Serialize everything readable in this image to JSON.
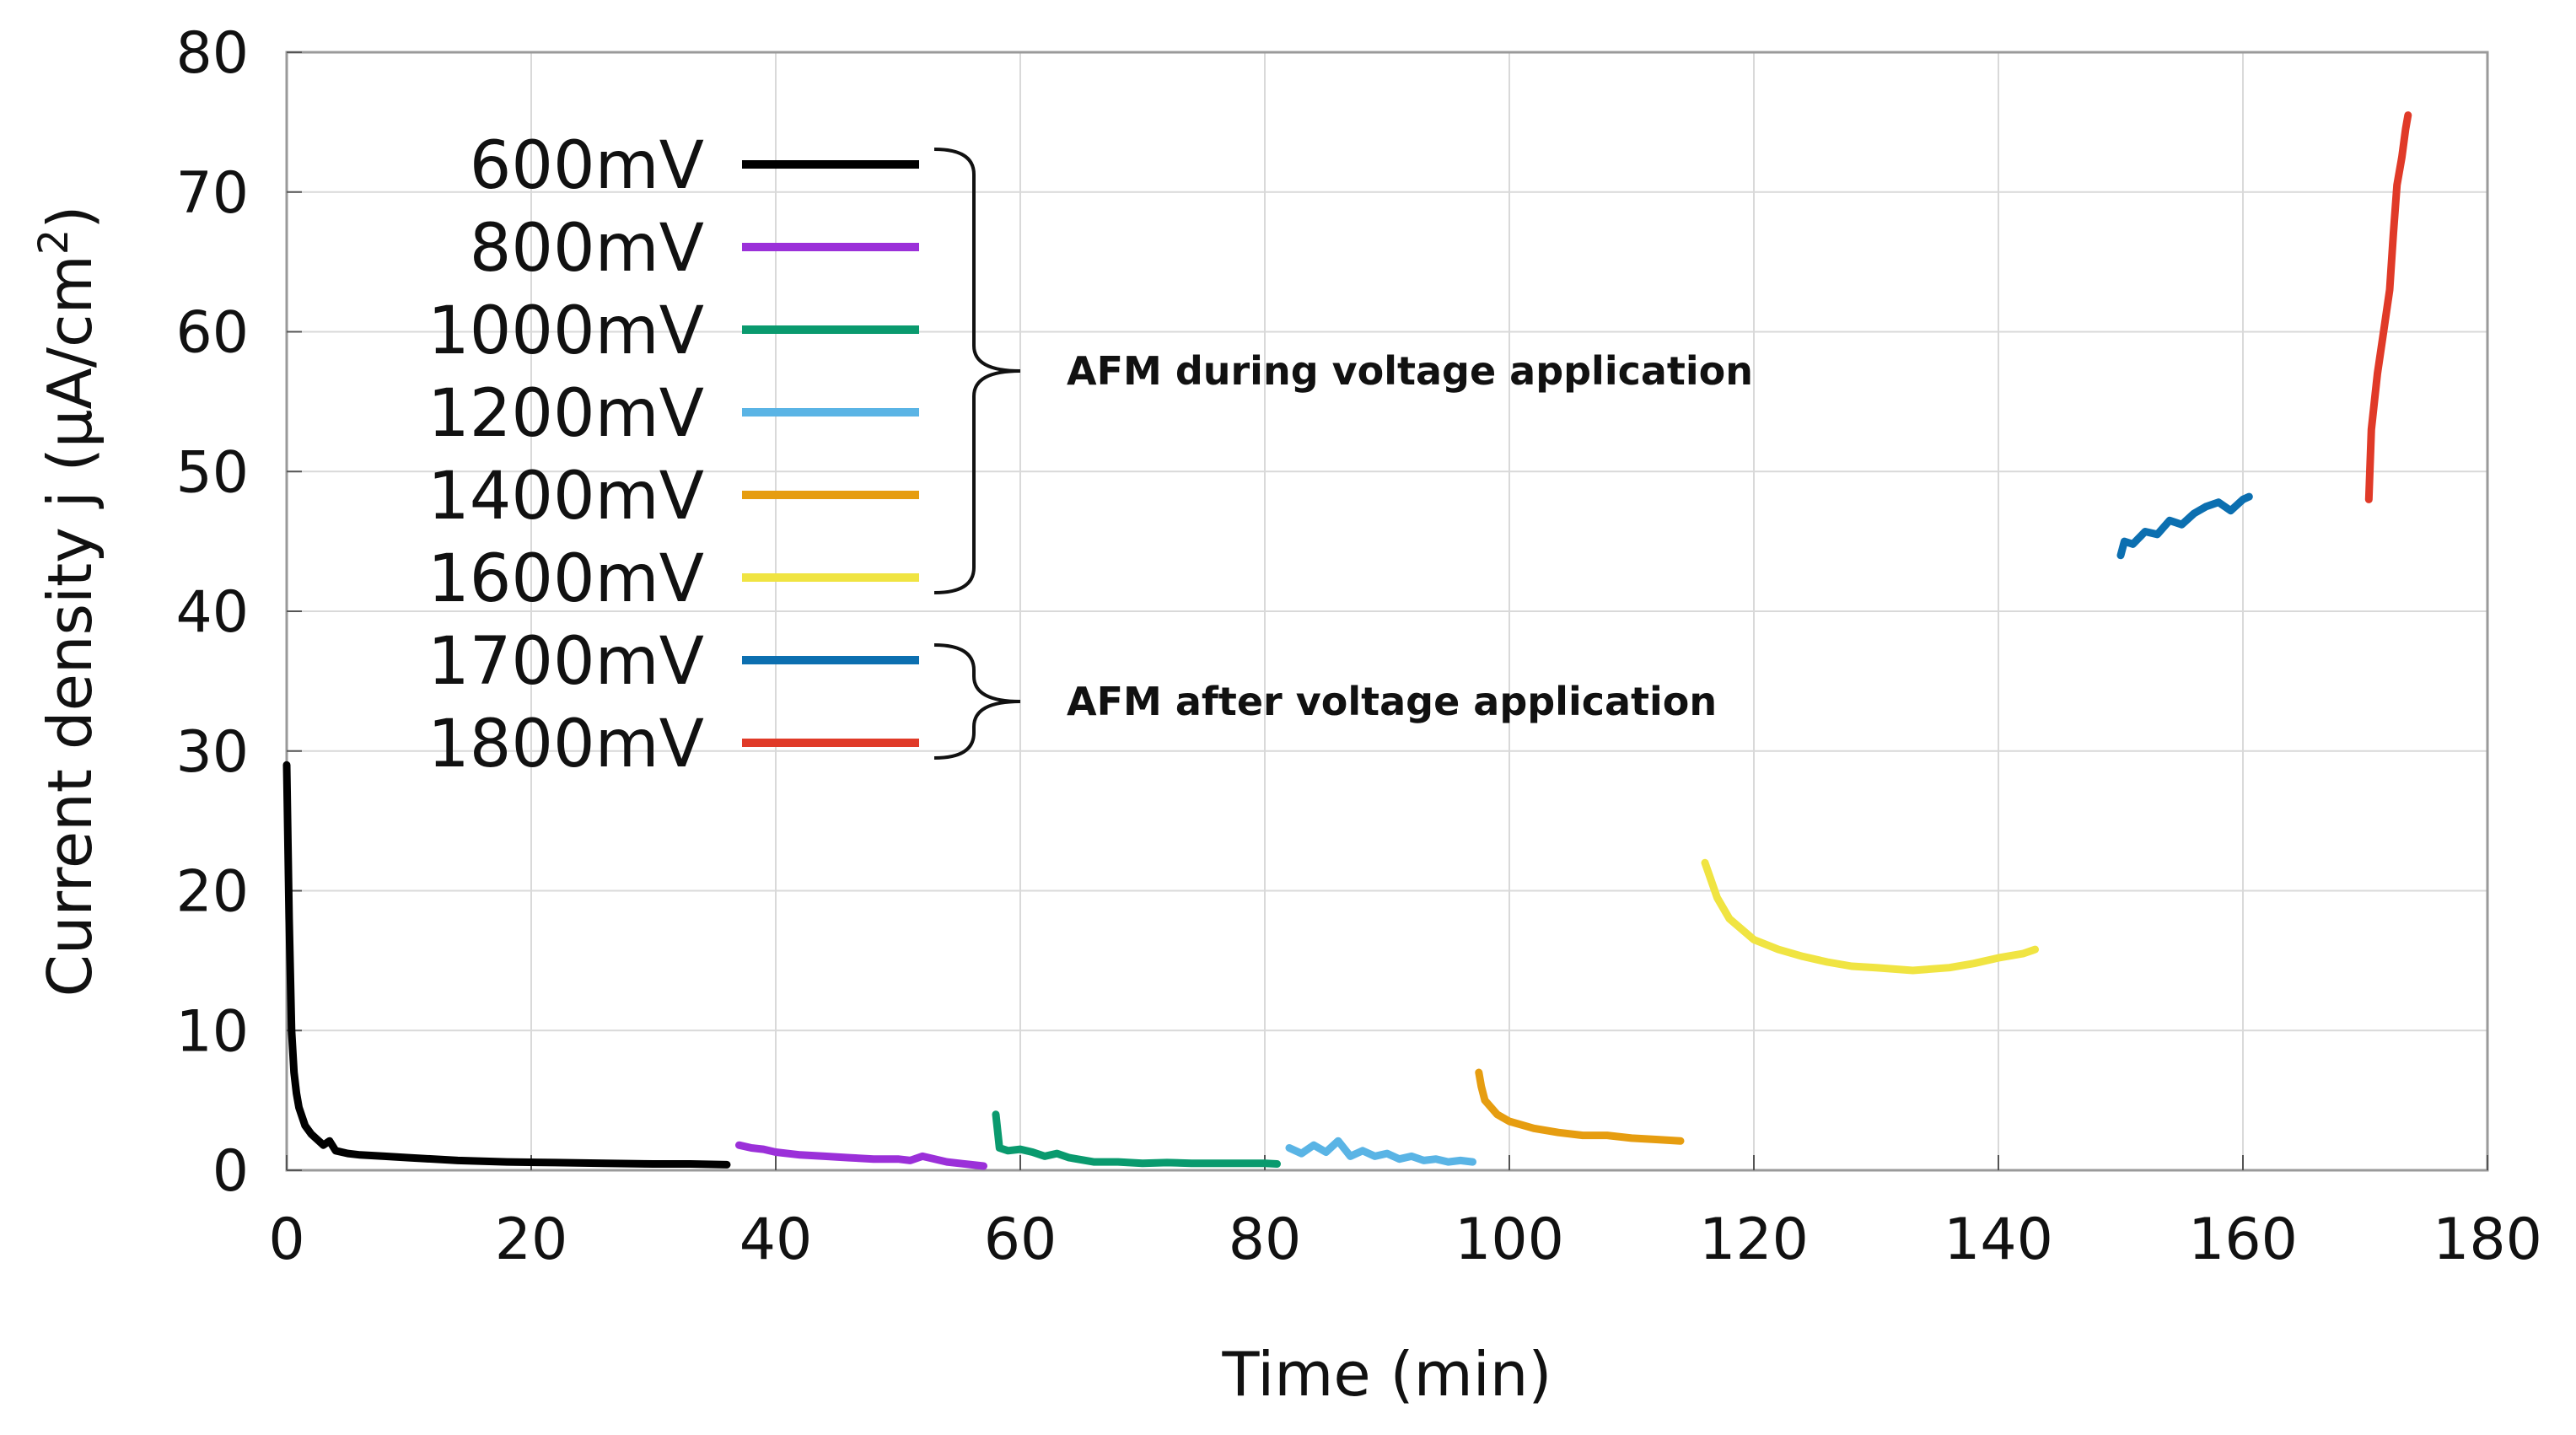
{
  "chart_data": {
    "type": "line",
    "title": "",
    "xlabel": "Time (min)",
    "ylabel": "Current density j (μA/cm²)",
    "ylabel_main": "Current density j (μA/cm",
    "ylabel_sup": "2",
    "ylabel_end": ")",
    "xlim": [
      0,
      180
    ],
    "ylim": [
      0,
      80
    ],
    "x_ticks": [
      0,
      20,
      40,
      60,
      80,
      100,
      120,
      140,
      160,
      180
    ],
    "y_ticks": [
      0,
      10,
      20,
      30,
      40,
      50,
      60,
      70,
      80
    ],
    "x_tick_labels": [
      "0",
      "20",
      "40",
      "60",
      "80",
      "100",
      "120",
      "140",
      "160",
      "180"
    ],
    "y_tick_labels": [
      "0",
      "10",
      "20",
      "30",
      "40",
      "50",
      "60",
      "70",
      "80"
    ],
    "grid": true,
    "legend_position": "top-left",
    "series": [
      {
        "name": "600mV",
        "color": "#000000",
        "x": [
          0,
          0.2,
          0.4,
          0.6,
          0.8,
          1,
          1.5,
          2,
          3,
          3.5,
          4,
          5,
          6,
          8,
          10,
          14,
          18,
          22,
          26,
          30,
          33,
          36
        ],
        "y": [
          29,
          18,
          10,
          7,
          5.5,
          4.5,
          3.2,
          2.6,
          1.8,
          2.1,
          1.4,
          1.2,
          1.1,
          1.0,
          0.9,
          0.7,
          0.6,
          0.55,
          0.5,
          0.45,
          0.45,
          0.4
        ]
      },
      {
        "name": "800mV",
        "color": "#9b30d9",
        "x": [
          37,
          38,
          39,
          40,
          42,
          44,
          46,
          48,
          50,
          51,
          52,
          54,
          56,
          57
        ],
        "y": [
          1.8,
          1.6,
          1.5,
          1.3,
          1.1,
          1.0,
          0.9,
          0.8,
          0.8,
          0.7,
          1.0,
          0.6,
          0.4,
          0.3
        ]
      },
      {
        "name": "1000mV",
        "color": "#0a9a6e",
        "x": [
          58,
          58.3,
          59,
          60,
          61,
          62,
          63,
          64,
          66,
          68,
          70,
          72,
          74,
          76,
          78,
          80,
          81
        ],
        "y": [
          4,
          1.6,
          1.4,
          1.5,
          1.3,
          1.0,
          1.2,
          0.9,
          0.6,
          0.6,
          0.5,
          0.55,
          0.5,
          0.5,
          0.5,
          0.5,
          0.45
        ]
      },
      {
        "name": "1200mV",
        "color": "#5ab4e5",
        "x": [
          82,
          83,
          84,
          85,
          86,
          87,
          88,
          89,
          90,
          91,
          92,
          93,
          94,
          95,
          96,
          97
        ],
        "y": [
          1.6,
          1.2,
          1.8,
          1.3,
          2.1,
          1.0,
          1.4,
          1.0,
          1.2,
          0.8,
          1.0,
          0.7,
          0.8,
          0.6,
          0.7,
          0.6
        ]
      },
      {
        "name": "1400mV",
        "color": "#e69d10",
        "x": [
          97.5,
          97.7,
          98,
          99,
          100,
          102,
          104,
          106,
          108,
          110,
          112,
          114
        ],
        "y": [
          7,
          6,
          5,
          4,
          3.5,
          3.0,
          2.7,
          2.5,
          2.5,
          2.3,
          2.2,
          2.1
        ]
      },
      {
        "name": "1600mV",
        "color": "#f0e442",
        "x": [
          116,
          117,
          118,
          120,
          122,
          124,
          126,
          128,
          130,
          133,
          136,
          138,
          140,
          142,
          143
        ],
        "y": [
          22,
          19.5,
          18,
          16.5,
          15.8,
          15.3,
          14.9,
          14.6,
          14.5,
          14.3,
          14.5,
          14.8,
          15.2,
          15.5,
          15.8
        ]
      },
      {
        "name": "1700mV",
        "color": "#0c6fb0",
        "x": [
          150,
          150.3,
          151,
          152,
          153,
          154,
          155,
          156,
          157,
          158,
          159,
          160,
          160.5
        ],
        "y": [
          44,
          45,
          44.8,
          45.7,
          45.5,
          46.5,
          46.2,
          47.0,
          47.5,
          47.8,
          47.2,
          48.0,
          48.2
        ]
      },
      {
        "name": "1800mV",
        "color": "#e03a28",
        "x": [
          170.3,
          170.5,
          171,
          171.5,
          172,
          172.3,
          172.6,
          173,
          173.3,
          173.5
        ],
        "y": [
          48,
          53,
          57,
          60,
          63,
          67,
          70.5,
          72.5,
          74.5,
          75.5
        ]
      }
    ],
    "annotations": [
      {
        "text": "AFM during voltage application",
        "groups": [
          "600mV",
          "800mV",
          "1000mV",
          "1200mV",
          "1400mV",
          "1600mV"
        ]
      },
      {
        "text": "AFM after voltage application",
        "groups": [
          "1700mV",
          "1800mV"
        ]
      }
    ]
  }
}
